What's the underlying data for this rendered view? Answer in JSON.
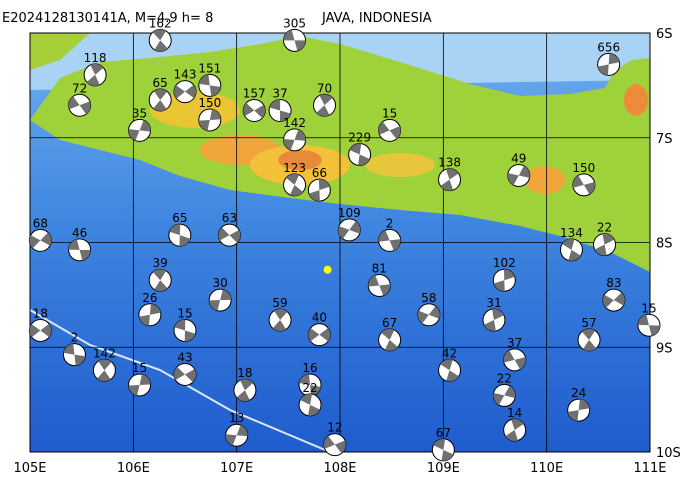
{
  "chart_data": {
    "type": "map",
    "title": "E2024128130141A, M=4.9 h= 8",
    "region": "JAVA, INDONESIA",
    "xlim": [
      105,
      111
    ],
    "ylim": [
      -10,
      -6
    ],
    "xticks": [
      {
        "value": 105,
        "label": "105E"
      },
      {
        "value": 106,
        "label": "106E"
      },
      {
        "value": 107,
        "label": "107E"
      },
      {
        "value": 108,
        "label": "108E"
      },
      {
        "value": 109,
        "label": "109E"
      },
      {
        "value": 110,
        "label": "110E"
      },
      {
        "value": 111,
        "label": "111E"
      }
    ],
    "yticks": [
      {
        "value": -6,
        "label": "6S"
      },
      {
        "value": -7,
        "label": "7S"
      },
      {
        "value": -8,
        "label": "8S"
      },
      {
        "value": -9,
        "label": "9S"
      },
      {
        "value": -10,
        "label": "10S"
      }
    ],
    "grid": true,
    "epicenter": {
      "x": 107.88,
      "y": -8.26,
      "color": "#ffff00"
    },
    "events": {
      "x": [
        107.56,
        106.26,
        110.6,
        106.5,
        106.74,
        106.26,
        106.74,
        107.17,
        107.42,
        107.85,
        107.56,
        108.48,
        108.19,
        109.06,
        109.73,
        110.36,
        110.24,
        110.56,
        108.09,
        108.48,
        107.56,
        107.8,
        105.1,
        105.48,
        106.26,
        106.16,
        105.1,
        105.43,
        105.72,
        106.06,
        106.5,
        106.5,
        107.08,
        107.0,
        107.95,
        109.0,
        109.69,
        109.59,
        109.69,
        109.06,
        109.49,
        108.86,
        108.38,
        108.48,
        109.59,
        110.65,
        110.99,
        110.41,
        110.31,
        107.8,
        107.71,
        107.42,
        106.84,
        106.93,
        106.45,
        105.63,
        106.06,
        105.48,
        107.71
      ],
      "y": [
        -6.07,
        -6.07,
        -6.3,
        -6.56,
        -6.5,
        -6.64,
        -6.83,
        -6.74,
        -6.74,
        -6.69,
        -7.02,
        -6.93,
        -7.16,
        -7.4,
        -7.36,
        -7.45,
        -8.07,
        -8.02,
        -7.88,
        -7.98,
        -7.45,
        -7.5,
        -7.98,
        -8.07,
        -8.36,
        -8.69,
        -8.84,
        -9.07,
        -9.22,
        -9.36,
        -9.26,
        -8.84,
        -9.41,
        -9.84,
        -9.93,
        -9.98,
        -9.79,
        -9.46,
        -9.12,
        -9.22,
        -8.74,
        -8.69,
        -8.41,
        -8.93,
        -8.36,
        -8.55,
        -8.79,
        -8.93,
        -9.6,
        -8.88,
        -9.36,
        -8.74,
        -8.55,
        -7.93,
        -7.93,
        -6.4,
        -6.93,
        -6.69,
        -9.55
      ],
      "depth": [
        305,
        162,
        656,
        143,
        151,
        65,
        150,
        157,
        37,
        70,
        142,
        15,
        229,
        138,
        49,
        150,
        134,
        22,
        109,
        2,
        123,
        66,
        68,
        46,
        39,
        26,
        18,
        2,
        142,
        15,
        43,
        15,
        18,
        13,
        12,
        67,
        14,
        22,
        37,
        42,
        31,
        58,
        81,
        67,
        102,
        83,
        15,
        57,
        24,
        40,
        16,
        59,
        30,
        63,
        65,
        118,
        35,
        72,
        22
      ]
    }
  }
}
